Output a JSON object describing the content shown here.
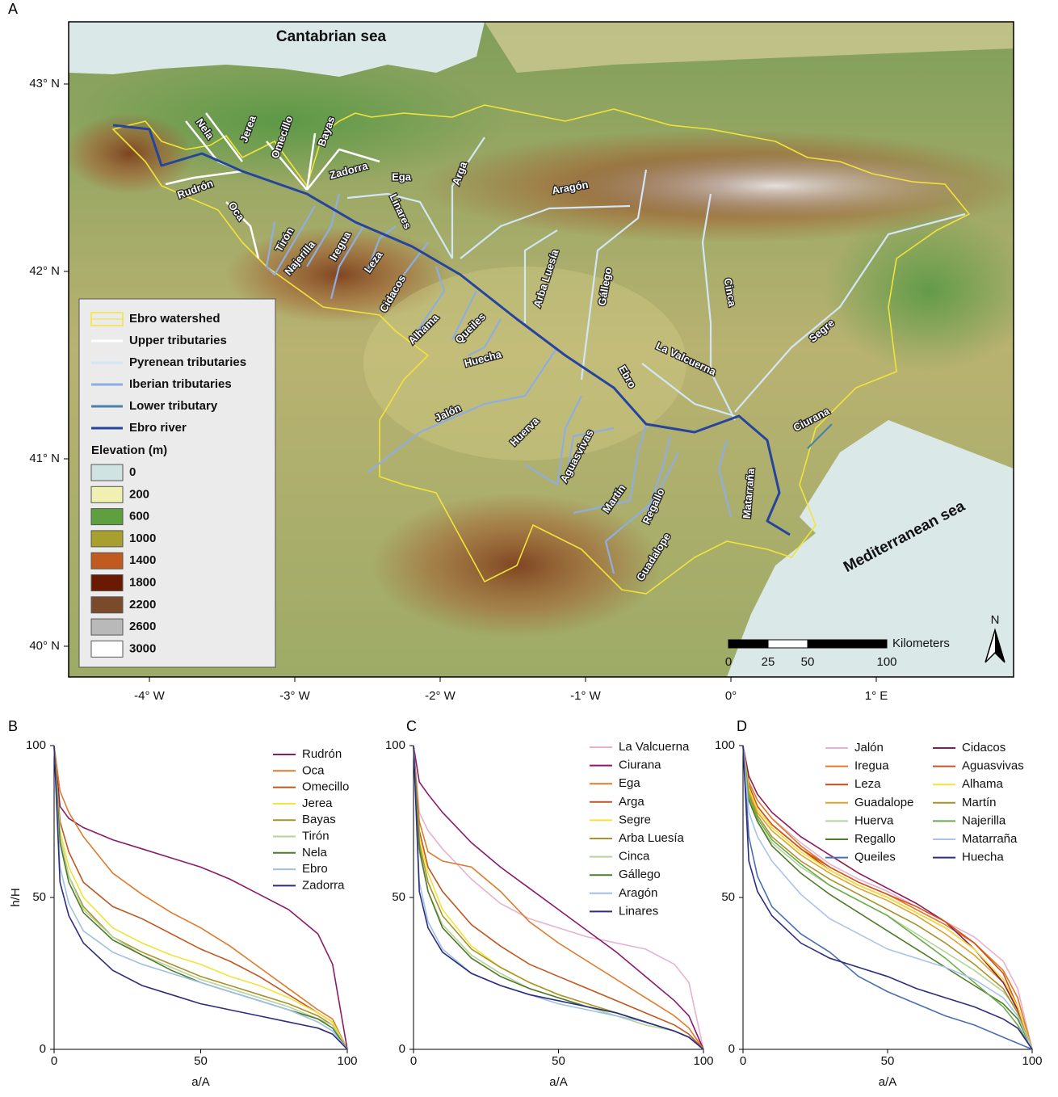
{
  "panels": [
    "A",
    "B",
    "C",
    "D"
  ],
  "map": {
    "xticks": [
      {
        "value": -4,
        "label": "-4° W"
      },
      {
        "value": -3,
        "label": "-3° W"
      },
      {
        "value": -2,
        "label": "-2° W"
      },
      {
        "value": -1,
        "label": "-1° W"
      },
      {
        "value": 0,
        "label": "0°"
      },
      {
        "value": 1,
        "label": "1° E"
      }
    ],
    "yticks": [
      {
        "value": 43,
        "label": "43° N"
      },
      {
        "value": 42,
        "label": "42° N"
      },
      {
        "value": 41,
        "label": "41° N"
      },
      {
        "value": 40,
        "label": "40° N"
      }
    ],
    "seas": [
      "Cantabrian sea",
      "Mediterranean sea"
    ],
    "rivers": [
      "Nela",
      "Jerea",
      "Omecillo",
      "Bayas",
      "Zadorra",
      "Rudrón",
      "Oca",
      "Ega",
      "Linares",
      "Arga",
      "Aragón",
      "Tirón",
      "Najerilla",
      "Iregua",
      "Leza",
      "Cidacos",
      "Alhama",
      "Queiles",
      "Huecha",
      "Arba Luesía",
      "Gállego",
      "Cinca",
      "La Valcuerna",
      "Ebro",
      "Segre",
      "Jalón",
      "Huerva",
      "Aguasvivas",
      "Martín",
      "Regallo",
      "Guadalope",
      "Matarraña",
      "Ciurana"
    ],
    "legend": [
      {
        "name": "Ebro watershed",
        "color": "#f2e33a"
      },
      {
        "name": "Upper tributaries",
        "color": "#ffffff"
      },
      {
        "name": "Pyrenean tributaries",
        "color": "#d3e6f6"
      },
      {
        "name": "Iberian tributaries",
        "color": "#8eaee2"
      },
      {
        "name": "Lower tributary",
        "color": "#4a7fae"
      },
      {
        "name": "Ebro river",
        "color": "#27449c"
      }
    ],
    "elevation_title": "Elevation (m)",
    "elevation": [
      {
        "value": 0,
        "color": "#cfe4e2"
      },
      {
        "value": 200,
        "color": "#eff0b2"
      },
      {
        "value": 600,
        "color": "#5e9f3f"
      },
      {
        "value": 1000,
        "color": "#a8a02e"
      },
      {
        "value": 1400,
        "color": "#c05a1f"
      },
      {
        "value": 1800,
        "color": "#6a1a02"
      },
      {
        "value": 2200,
        "color": "#7b4a2b"
      },
      {
        "value": 2600,
        "color": "#b9b9b9"
      },
      {
        "value": 3000,
        "color": "#ffffff"
      }
    ],
    "scale_ticks": [
      0,
      25,
      50,
      100
    ],
    "scale_unit": "Kilometers",
    "north": "N"
  },
  "chart_data": [
    {
      "type": "line",
      "xlabel": "a/A",
      "ylabel": "h/H",
      "xlim": [
        0,
        100
      ],
      "ylim": [
        0,
        100
      ],
      "xticks": [
        0,
        50,
        100
      ],
      "yticks": [
        0,
        50,
        100
      ],
      "x": [
        0,
        2,
        5,
        10,
        20,
        30,
        40,
        50,
        60,
        70,
        80,
        90,
        95,
        100
      ],
      "series": [
        {
          "name": "Rudrón",
          "color": "#8b1a6b",
          "values": [
            100,
            80,
            76,
            73,
            69,
            66,
            63,
            60,
            56,
            51,
            46,
            38,
            28,
            0
          ]
        },
        {
          "name": "Oca",
          "color": "#e07a2a",
          "values": [
            100,
            85,
            78,
            70,
            58,
            51,
            45,
            40,
            34,
            27,
            20,
            13,
            10,
            0
          ]
        },
        {
          "name": "Omecillo",
          "color": "#c0561f",
          "values": [
            100,
            75,
            65,
            55,
            47,
            43,
            38,
            33,
            29,
            24,
            18,
            12,
            9,
            0
          ]
        },
        {
          "name": "Jerea",
          "color": "#f2e23a",
          "values": [
            100,
            72,
            60,
            50,
            40,
            35,
            31,
            28,
            24,
            21,
            17,
            12,
            9,
            0
          ]
        },
        {
          "name": "Bayas",
          "color": "#a8922a",
          "values": [
            100,
            70,
            57,
            47,
            37,
            32,
            28,
            24,
            21,
            18,
            15,
            11,
            8,
            0
          ]
        },
        {
          "name": "Tirón",
          "color": "#b5d39a",
          "values": [
            100,
            70,
            57,
            46,
            37,
            31,
            27,
            23,
            20,
            17,
            14,
            10,
            8,
            0
          ]
        },
        {
          "name": "Nela",
          "color": "#4f7a2a",
          "values": [
            100,
            68,
            55,
            45,
            36,
            31,
            26,
            22,
            19,
            16,
            13,
            10,
            7,
            0
          ]
        },
        {
          "name": "Ebro",
          "color": "#9dc0e4",
          "values": [
            100,
            60,
            48,
            39,
            32,
            28,
            25,
            22,
            19,
            16,
            13,
            9,
            6,
            0
          ]
        },
        {
          "name": "Zadorra",
          "color": "#2e2c7e",
          "values": [
            100,
            55,
            44,
            35,
            26,
            21,
            18,
            15,
            13,
            11,
            9,
            7,
            5,
            0
          ]
        }
      ]
    },
    {
      "type": "line",
      "xlabel": "a/A",
      "xlim": [
        0,
        100
      ],
      "ylim": [
        0,
        100
      ],
      "xticks": [
        0,
        50,
        100
      ],
      "yticks": [
        0,
        50,
        100
      ],
      "x": [
        0,
        2,
        5,
        10,
        20,
        30,
        40,
        50,
        60,
        70,
        80,
        90,
        95,
        100
      ],
      "series": [
        {
          "name": "La Valcuerna",
          "color": "#e6b2cf",
          "values": [
            100,
            78,
            72,
            66,
            56,
            48,
            43,
            40,
            37,
            35,
            33,
            28,
            22,
            0
          ]
        },
        {
          "name": "Ciurana",
          "color": "#8b1a6b",
          "values": [
            100,
            88,
            84,
            78,
            68,
            60,
            53,
            46,
            39,
            32,
            24,
            16,
            11,
            0
          ]
        },
        {
          "name": "Ega",
          "color": "#e07a2a",
          "values": [
            100,
            75,
            65,
            62,
            60,
            52,
            42,
            35,
            29,
            23,
            17,
            11,
            7,
            0
          ]
        },
        {
          "name": "Arga",
          "color": "#c0561f",
          "values": [
            100,
            72,
            60,
            52,
            41,
            34,
            28,
            24,
            20,
            16,
            12,
            8,
            5,
            0
          ]
        },
        {
          "name": "Segre",
          "color": "#f2e23a",
          "values": [
            100,
            70,
            58,
            46,
            34,
            27,
            22,
            18,
            15,
            12,
            9,
            6,
            4,
            0
          ]
        },
        {
          "name": "Arba Luesía",
          "color": "#a8922a",
          "values": [
            100,
            68,
            55,
            44,
            33,
            27,
            22,
            18,
            15,
            12,
            9,
            6,
            4,
            0
          ]
        },
        {
          "name": "Cinca",
          "color": "#b5d39a",
          "values": [
            100,
            65,
            52,
            41,
            31,
            25,
            20,
            17,
            14,
            11,
            8,
            6,
            4,
            0
          ]
        },
        {
          "name": "Gállego",
          "color": "#4f7a2a",
          "values": [
            100,
            66,
            52,
            40,
            30,
            24,
            20,
            17,
            14,
            12,
            9,
            6,
            4,
            0
          ]
        },
        {
          "name": "Aragón",
          "color": "#9dc0e4",
          "values": [
            100,
            55,
            42,
            33,
            25,
            21,
            18,
            15,
            13,
            11,
            9,
            6,
            4,
            0
          ]
        },
        {
          "name": "Linares",
          "color": "#2e2c7e",
          "values": [
            100,
            52,
            40,
            32,
            25,
            21,
            18,
            16,
            14,
            12,
            9,
            6,
            4,
            0
          ]
        }
      ]
    },
    {
      "type": "line",
      "xlabel": "a/A",
      "xlim": [
        0,
        100
      ],
      "ylim": [
        0,
        100
      ],
      "xticks": [
        0,
        50,
        100
      ],
      "yticks": [
        0,
        50,
        100
      ],
      "x": [
        0,
        2,
        5,
        10,
        20,
        30,
        40,
        50,
        60,
        70,
        80,
        90,
        95,
        100
      ],
      "series": [
        {
          "name": "Jalón",
          "color": "#e6b2cf",
          "values": [
            100,
            88,
            82,
            76,
            68,
            61,
            56,
            52,
            47,
            42,
            37,
            29,
            20,
            0
          ]
        },
        {
          "name": "Iregua",
          "color": "#e07a2a",
          "values": [
            100,
            88,
            82,
            76,
            67,
            60,
            55,
            51,
            46,
            41,
            35,
            26,
            17,
            0
          ]
        },
        {
          "name": "Leza",
          "color": "#b8501e",
          "values": [
            100,
            87,
            80,
            74,
            66,
            59,
            54,
            50,
            45,
            40,
            33,
            22,
            14,
            0
          ]
        },
        {
          "name": "Guadalope",
          "color": "#d9a62a",
          "values": [
            100,
            85,
            78,
            72,
            64,
            58,
            53,
            49,
            44,
            38,
            31,
            22,
            14,
            0
          ]
        },
        {
          "name": "Huerva",
          "color": "#b5d39a",
          "values": [
            100,
            82,
            75,
            68,
            60,
            54,
            49,
            44,
            38,
            32,
            26,
            19,
            13,
            0
          ]
        },
        {
          "name": "Regallo",
          "color": "#4f7a2a",
          "values": [
            100,
            82,
            75,
            67,
            58,
            51,
            45,
            39,
            33,
            27,
            21,
            15,
            10,
            0
          ]
        },
        {
          "name": "Queiles",
          "color": "#4a6fb0",
          "values": [
            100,
            70,
            57,
            47,
            38,
            32,
            24,
            19,
            15,
            11,
            8,
            4,
            2,
            0
          ]
        },
        {
          "name": "Cidacos",
          "color": "#8b1a5b",
          "values": [
            100,
            90,
            84,
            78,
            70,
            64,
            58,
            53,
            48,
            42,
            33,
            22,
            13,
            0
          ]
        },
        {
          "name": "Aguasvivas",
          "color": "#d0521e",
          "values": [
            100,
            86,
            80,
            74,
            66,
            60,
            55,
            51,
            47,
            42,
            35,
            25,
            14,
            0
          ]
        },
        {
          "name": "Alhama",
          "color": "#f2e23a",
          "values": [
            100,
            86,
            79,
            73,
            65,
            59,
            54,
            50,
            45,
            40,
            33,
            23,
            14,
            0
          ]
        },
        {
          "name": "Martín",
          "color": "#a8922a",
          "values": [
            100,
            84,
            77,
            70,
            62,
            56,
            51,
            46,
            41,
            35,
            28,
            20,
            12,
            0
          ]
        },
        {
          "name": "Najerilla",
          "color": "#6aab4a",
          "values": [
            100,
            83,
            76,
            69,
            61,
            54,
            49,
            44,
            37,
            30,
            22,
            14,
            8,
            0
          ]
        },
        {
          "name": "Matarraña",
          "color": "#a9c4ea",
          "values": [
            100,
            78,
            70,
            62,
            51,
            43,
            38,
            33,
            30,
            27,
            23,
            17,
            11,
            0
          ]
        },
        {
          "name": "Huecha",
          "color": "#2e2c7e",
          "values": [
            100,
            62,
            52,
            44,
            35,
            30,
            27,
            24,
            20,
            17,
            14,
            10,
            7,
            0
          ]
        }
      ]
    }
  ]
}
